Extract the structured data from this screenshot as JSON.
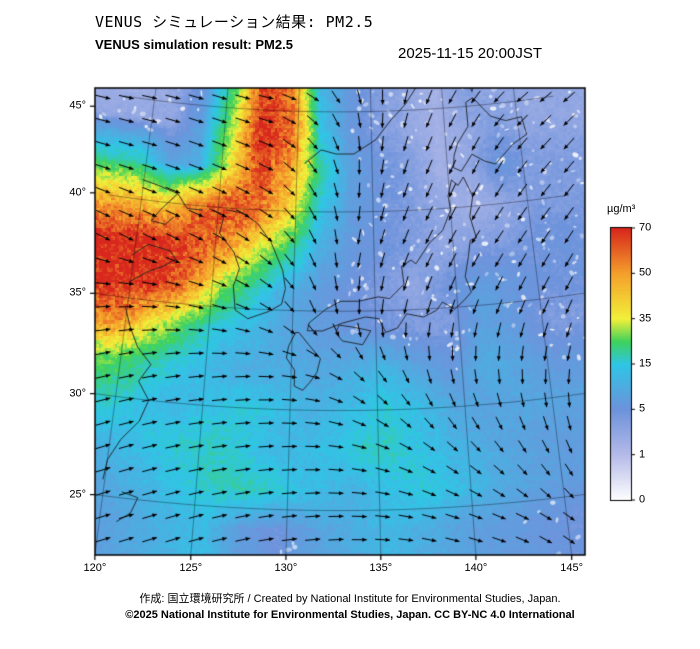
{
  "header": {
    "title_jp": "VENUS シミュレーション結果: PM2.5",
    "title_en": "VENUS simulation result: PM2.5",
    "timestamp": "2025-11-15 20:00JST"
  },
  "footer": {
    "credit": "作成: 国立環境研究所 / Created by National Institute for Environmental Studies, Japan.",
    "license": "©2025 National Institute for Environmental Studies, Japan. CC BY-NC 4.0 International"
  },
  "chart_data": {
    "type": "heatmap",
    "title": "VENUS simulation result: PM2.5",
    "units": "µg/m³",
    "projection": {
      "type": "lambert_conformal_conic",
      "lon0": 132.8,
      "lat1": 30,
      "lat2": 40,
      "lon_range": [
        119.9,
        145.8
      ],
      "lat_range": [
        22.8,
        45.6
      ]
    },
    "x_ticks": [
      {
        "v": 120,
        "label": "120°"
      },
      {
        "v": 125,
        "label": "125°"
      },
      {
        "v": 130,
        "label": "130°"
      },
      {
        "v": 135,
        "label": "135°"
      },
      {
        "v": 140,
        "label": "140°"
      },
      {
        "v": 145,
        "label": "145°"
      }
    ],
    "y_ticks": [
      {
        "v": 25,
        "label": "25°"
      },
      {
        "v": 30,
        "label": "30°"
      },
      {
        "v": 35,
        "label": "35°"
      },
      {
        "v": 40,
        "label": "40°"
      },
      {
        "v": 45,
        "label": "45°"
      }
    ],
    "colorbar": {
      "title": "µg/m³",
      "ticks": [
        0,
        1,
        5,
        15,
        35,
        50,
        70
      ],
      "stops": [
        {
          "v": 0,
          "c": "#ffffff"
        },
        {
          "v": 1,
          "c": "#b6bbe9"
        },
        {
          "v": 5,
          "c": "#6e93dc"
        },
        {
          "v": 15,
          "c": "#2fc6e6"
        },
        {
          "v": 25,
          "c": "#3ed25c"
        },
        {
          "v": 35,
          "c": "#f2f13a"
        },
        {
          "v": 50,
          "c": "#f5a02c"
        },
        {
          "v": 70,
          "c": "#d8271d"
        }
      ]
    },
    "grid": {
      "lons": [
        119.5,
        121.5,
        123.5,
        125.5,
        127.5,
        129.5,
        131.5,
        133.5,
        135.5,
        137.5,
        139.5,
        141.5,
        143.5,
        145.5
      ],
      "lats": [
        46,
        44,
        42,
        40,
        38,
        36,
        34,
        32,
        30,
        28,
        26,
        24
      ],
      "values": [
        [
          2,
          3,
          6,
          25,
          65,
          55,
          12,
          6,
          4,
          3,
          2,
          4,
          3,
          3
        ],
        [
          3,
          3,
          8,
          30,
          70,
          60,
          15,
          6,
          4,
          3,
          2,
          3,
          4,
          3
        ],
        [
          18,
          8,
          10,
          35,
          65,
          50,
          20,
          8,
          5,
          4,
          2,
          3,
          6,
          4
        ],
        [
          45,
          40,
          55,
          65,
          60,
          40,
          15,
          7,
          5,
          4,
          3,
          2,
          3,
          4
        ],
        [
          70,
          70,
          65,
          55,
          35,
          22,
          10,
          6,
          5,
          4,
          3,
          4,
          4,
          5
        ],
        [
          70,
          70,
          55,
          30,
          18,
          10,
          7,
          5,
          4,
          3,
          5,
          7,
          6,
          5
        ],
        [
          55,
          38,
          25,
          15,
          12,
          9,
          7,
          6,
          5,
          4,
          4,
          8,
          6,
          4
        ],
        [
          28,
          20,
          15,
          12,
          10,
          10,
          9,
          10,
          12,
          8,
          6,
          10,
          8,
          6
        ],
        [
          18,
          14,
          12,
          14,
          16,
          13,
          11,
          13,
          16,
          13,
          9,
          8,
          9,
          8
        ],
        [
          12,
          14,
          16,
          18,
          15,
          12,
          13,
          16,
          18,
          14,
          11,
          9,
          8,
          7
        ],
        [
          9,
          11,
          14,
          17,
          19,
          16,
          13,
          11,
          14,
          16,
          13,
          10,
          8,
          7
        ],
        [
          7,
          9,
          11,
          13,
          7,
          5,
          8,
          10,
          12,
          10,
          8,
          7,
          6,
          5
        ]
      ]
    },
    "wind": {
      "lons": [
        120,
        124,
        128,
        131,
        134,
        138,
        142,
        146
      ],
      "lats": [
        46,
        42,
        38,
        35,
        32,
        28,
        24
      ],
      "u": [
        [
          1,
          1,
          1,
          0.8,
          0.3,
          -0.3,
          -0.6,
          -0.8
        ],
        [
          1,
          1,
          1,
          0.6,
          0,
          -0.4,
          -0.5,
          -0.7
        ],
        [
          1,
          1,
          0.9,
          0.5,
          -0.2,
          -0.5,
          -0.6,
          -0.6
        ],
        [
          1,
          1,
          0.8,
          0.4,
          0,
          -0.3,
          -0.4,
          -0.5
        ],
        [
          1,
          1,
          1,
          0.9,
          0.6,
          0.2,
          0,
          -0.2
        ],
        [
          1,
          1,
          1,
          1,
          0.9,
          0.7,
          0.5,
          0.3
        ],
        [
          1,
          1,
          1,
          1,
          1,
          0.9,
          0.8,
          0.6
        ]
      ],
      "v": [
        [
          -0.2,
          -0.3,
          -0.2,
          -0.5,
          -1,
          -1,
          -0.8,
          -0.6
        ],
        [
          -0.3,
          -0.4,
          -0.5,
          -0.9,
          -1,
          -1,
          -1,
          -0.8
        ],
        [
          -0.5,
          -0.5,
          -0.7,
          -1,
          -1,
          -1,
          -0.9,
          -0.9
        ],
        [
          0,
          -0.2,
          -0.4,
          -0.8,
          -1,
          -1,
          -1,
          -1
        ],
        [
          0.2,
          0.1,
          0,
          -0.2,
          -0.6,
          -0.9,
          -1,
          -1
        ],
        [
          0.3,
          0.2,
          0.1,
          0,
          -0.2,
          -0.5,
          -0.7,
          -0.9
        ],
        [
          0.3,
          0.3,
          0.2,
          0.1,
          0,
          -0.2,
          -0.3,
          -0.5
        ]
      ]
    },
    "coastlines": {
      "korea": [
        [
          124.4,
          39.9
        ],
        [
          125.4,
          39.6
        ],
        [
          125.2,
          38.7
        ],
        [
          126.2,
          37.8
        ],
        [
          126.6,
          37.0
        ],
        [
          126.3,
          36.1
        ],
        [
          126.5,
          34.9
        ],
        [
          127.3,
          34.5
        ],
        [
          128.5,
          34.9
        ],
        [
          129.3,
          35.3
        ],
        [
          129.5,
          36.1
        ],
        [
          129.3,
          37.0
        ],
        [
          128.5,
          38.4
        ],
        [
          127.6,
          39.3
        ],
        [
          126.6,
          39.8
        ],
        [
          125.5,
          39.9
        ]
      ],
      "honshu": [
        [
          130.9,
          34.0
        ],
        [
          131.8,
          34.0
        ],
        [
          133.0,
          34.4
        ],
        [
          134.4,
          34.7
        ],
        [
          135.2,
          34.6
        ],
        [
          135.6,
          33.9
        ],
        [
          136.3,
          34.1
        ],
        [
          136.9,
          34.8
        ],
        [
          137.9,
          34.6
        ],
        [
          138.7,
          34.9
        ],
        [
          139.1,
          35.3
        ],
        [
          139.8,
          34.9
        ],
        [
          140.4,
          35.3
        ],
        [
          140.9,
          35.7
        ],
        [
          140.6,
          36.5
        ],
        [
          140.9,
          37.5
        ],
        [
          141.1,
          38.3
        ],
        [
          141.5,
          38.4
        ],
        [
          141.2,
          39.5
        ],
        [
          141.5,
          40.5
        ],
        [
          141.0,
          41.5
        ],
        [
          140.6,
          41.1
        ],
        [
          140.2,
          41.4
        ],
        [
          139.9,
          40.6
        ],
        [
          140.0,
          39.9
        ],
        [
          139.4,
          38.9
        ],
        [
          138.5,
          38.3
        ],
        [
          137.6,
          37.3
        ],
        [
          137.3,
          37.5
        ],
        [
          136.7,
          37.2
        ],
        [
          136.8,
          36.3
        ],
        [
          135.9,
          35.6
        ],
        [
          135.2,
          35.7
        ],
        [
          134.0,
          35.5
        ],
        [
          132.9,
          35.5
        ],
        [
          132.0,
          35.1
        ],
        [
          131.0,
          34.4
        ],
        [
          130.9,
          34.0
        ]
      ],
      "kyushu": [
        [
          130.2,
          33.9
        ],
        [
          129.8,
          33.2
        ],
        [
          129.7,
          32.6
        ],
        [
          130.2,
          32.0
        ],
        [
          130.2,
          31.2
        ],
        [
          130.7,
          31.0
        ],
        [
          131.1,
          31.4
        ],
        [
          131.5,
          31.9
        ],
        [
          131.7,
          32.6
        ],
        [
          131.0,
          33.3
        ],
        [
          130.4,
          33.9
        ],
        [
          130.2,
          33.9
        ]
      ],
      "shikoku": [
        [
          132.6,
          33.9
        ],
        [
          133.0,
          33.5
        ],
        [
          134.2,
          33.3
        ],
        [
          134.7,
          34.0
        ],
        [
          133.6,
          34.2
        ],
        [
          132.8,
          34.3
        ],
        [
          132.6,
          33.9
        ]
      ],
      "hokkaido": [
        [
          140.4,
          42.0
        ],
        [
          140.9,
          41.8
        ],
        [
          141.7,
          42.6
        ],
        [
          142.5,
          42.2
        ],
        [
          143.2,
          42.0
        ],
        [
          144.5,
          42.9
        ],
        [
          145.5,
          43.3
        ],
        [
          145.3,
          44.2
        ],
        [
          144.2,
          44.1
        ],
        [
          143.2,
          44.4
        ],
        [
          142.1,
          45.4
        ],
        [
          141.6,
          45.2
        ],
        [
          141.6,
          44.0
        ],
        [
          140.8,
          43.2
        ],
        [
          140.5,
          42.6
        ],
        [
          140.4,
          42.0
        ]
      ],
      "liaodong": [
        [
          119.9,
          41.0
        ],
        [
          121.0,
          40.8
        ],
        [
          122.3,
          40.5
        ],
        [
          123.0,
          39.8
        ],
        [
          124.0,
          39.8
        ]
      ],
      "bohai": [
        [
          122.3,
          40.5
        ],
        [
          121.3,
          39.6
        ],
        [
          120.8,
          39.0
        ],
        [
          121.7,
          38.9
        ],
        [
          122.2,
          39.3
        ]
      ],
      "shandong": [
        [
          119.9,
          37.2
        ],
        [
          120.8,
          37.8
        ],
        [
          122.2,
          37.6
        ],
        [
          122.6,
          37.2
        ],
        [
          121.9,
          36.8
        ],
        [
          120.9,
          36.4
        ],
        [
          119.9,
          35.8
        ]
      ],
      "china_east": [
        [
          119.9,
          34.5
        ],
        [
          120.3,
          33.6
        ],
        [
          120.9,
          32.6
        ],
        [
          121.8,
          31.8
        ],
        [
          121.2,
          30.9
        ],
        [
          121.9,
          30.0
        ],
        [
          121.5,
          28.9
        ],
        [
          120.6,
          27.9
        ],
        [
          120.0,
          26.8
        ],
        [
          119.9,
          25.8
        ]
      ],
      "taiwan": [
        [
          121.0,
          25.3
        ],
        [
          121.9,
          25.1
        ],
        [
          121.6,
          24.3
        ],
        [
          120.9,
          23.8
        ]
      ],
      "primorye": [
        [
          130.5,
          42.4
        ],
        [
          131.6,
          43.1
        ],
        [
          132.6,
          42.9
        ],
        [
          133.8,
          42.9
        ],
        [
          135.3,
          43.6
        ],
        [
          136.3,
          44.5
        ],
        [
          137.4,
          45.3
        ],
        [
          138.3,
          46.2
        ]
      ],
      "sakhalin": [
        [
          141.8,
          46.3
        ],
        [
          142.1,
          45.7
        ],
        [
          142.3,
          46.3
        ]
      ]
    }
  }
}
